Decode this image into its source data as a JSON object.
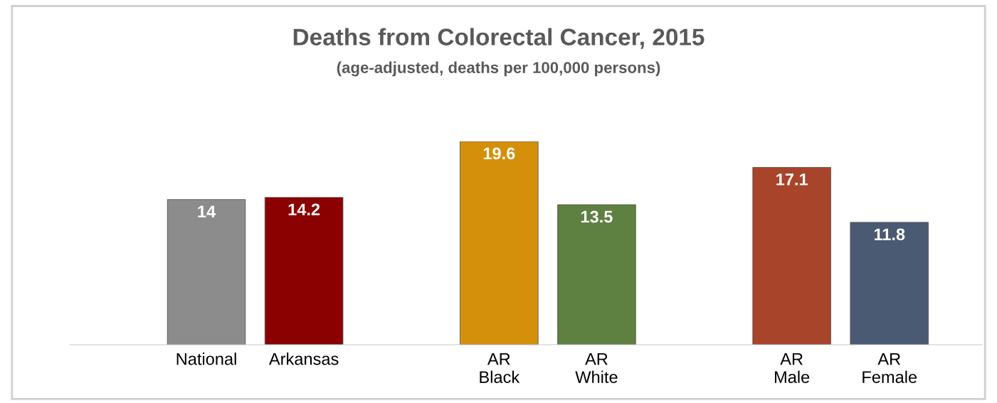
{
  "chart_data": {
    "type": "bar",
    "title": "Deaths from Colorectal Cancer, 2015",
    "subtitle": "(age-adjusted, deaths per 100,000 persons)",
    "categories": [
      "National",
      "Arkansas",
      null,
      "AR\nBlack",
      "AR\nWhite",
      null,
      "AR\nMale",
      "AR\nFemale"
    ],
    "values": [
      14,
      14.2,
      null,
      19.6,
      13.5,
      null,
      17.1,
      11.8
    ],
    "colors": [
      "#8c8c8c",
      "#8b0000",
      null,
      "#d4900a",
      "#5e8040",
      null,
      "#a8442a",
      "#4a5a72"
    ],
    "data_labels": true,
    "grid": false,
    "legend": false
  }
}
